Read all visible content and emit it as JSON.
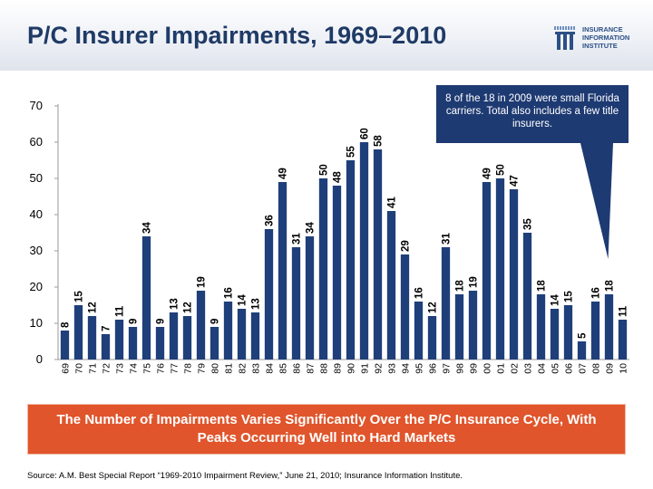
{
  "header": {
    "title": "P/C Insurer Impairments, 1969–2010"
  },
  "logo": {
    "lines": [
      "INSURANCE",
      "INFORMATION",
      "INSTITUTE"
    ],
    "icon": "iii-logo-icon"
  },
  "callout": {
    "text": "8 of the 18 in 2009 were small Florida carriers. Total also includes a few title insurers."
  },
  "banner": {
    "text": "The Number of Impairments Varies Significantly Over the P/C Insurance Cycle, With Peaks Occurring Well into Hard Markets"
  },
  "source": {
    "text": "Source: A.M. Best Special Report “1969-2010 Impairment Review,” June 21, 2010; Insurance Information Institute."
  },
  "colors": {
    "bar": "#1f3f7a",
    "title": "#1f3a66",
    "callout": "#1e3a72",
    "banner": "#e0552c",
    "gridline": "#cccccc"
  },
  "chart_data": {
    "type": "bar",
    "title": "",
    "xlabel": "",
    "ylabel": "",
    "categories": [
      "69",
      "70",
      "71",
      "72",
      "73",
      "74",
      "75",
      "76",
      "77",
      "78",
      "79",
      "80",
      "81",
      "82",
      "83",
      "84",
      "85",
      "86",
      "87",
      "88",
      "89",
      "90",
      "91",
      "92",
      "93",
      "94",
      "95",
      "96",
      "97",
      "98",
      "99",
      "00",
      "01",
      "02",
      "03",
      "04",
      "05",
      "06",
      "07",
      "08",
      "09",
      "10"
    ],
    "values": [
      8,
      15,
      12,
      7,
      11,
      9,
      34,
      9,
      13,
      12,
      19,
      9,
      16,
      14,
      13,
      36,
      49,
      31,
      34,
      50,
      48,
      55,
      60,
      58,
      41,
      29,
      16,
      12,
      31,
      18,
      19,
      49,
      50,
      47,
      35,
      18,
      14,
      15,
      5,
      16,
      18,
      11
    ],
    "ylim": [
      0,
      70
    ],
    "yticks": [
      0,
      10,
      20,
      30,
      40,
      50,
      60,
      70
    ],
    "grid": false,
    "legend": "none",
    "data_labels": true,
    "data_label_rotation": -90
  }
}
